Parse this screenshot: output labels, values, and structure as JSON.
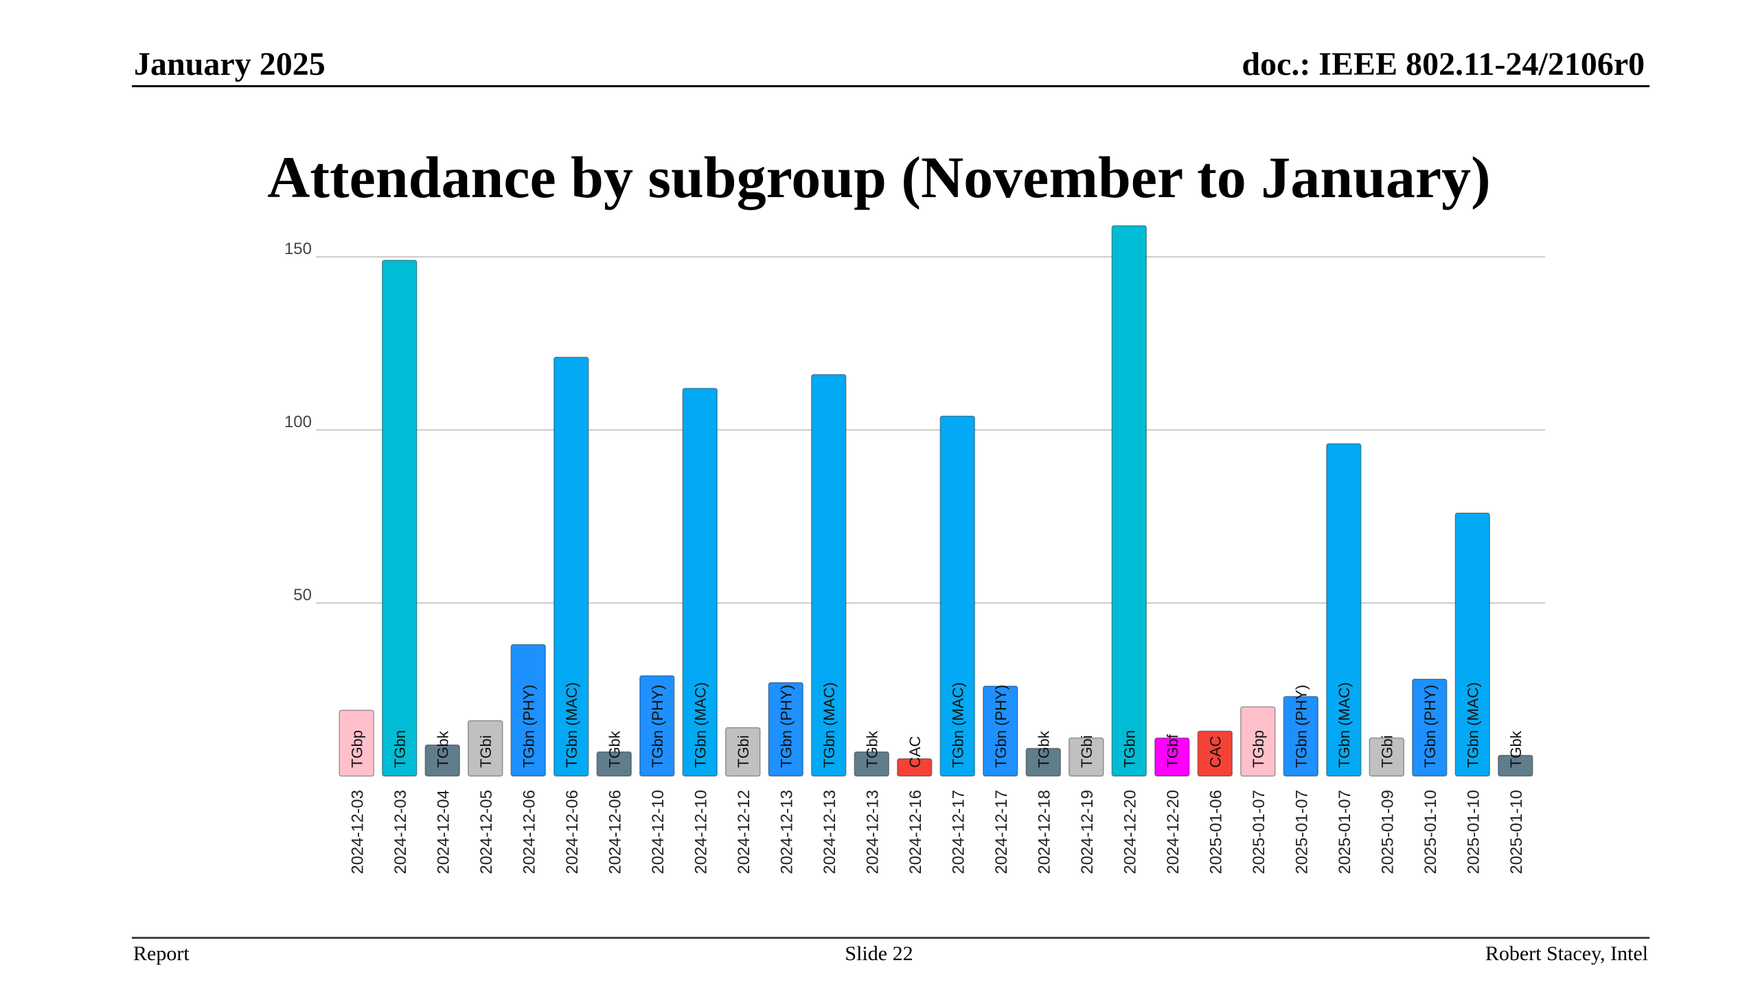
{
  "header": {
    "date": "January 2025",
    "doc": "doc.: IEEE 802.11-24/2106r0"
  },
  "title": "Attendance by subgroup (November to January)",
  "footer": {
    "left": "Report",
    "center": "Slide 22",
    "right": "Robert Stacey, Intel"
  },
  "colors": {
    "TGbp": "#ffc0cb",
    "TGbn": "#00bcd4",
    "TGbk": "#607d8b",
    "TGbi": "#c0c0c0",
    "TGbn (PHY)": "#1e90ff",
    "TGbn (MAC)": "#03a9f4",
    "CAC": "#f44336",
    "TGbf": "#ff00ff"
  },
  "chart_data": {
    "type": "bar",
    "title": "",
    "xlabel": "",
    "ylabel": "",
    "ylim": [
      0,
      160
    ],
    "yticks": [
      50,
      100,
      150
    ],
    "grid": true,
    "categories": [
      "2024-12-03",
      "2024-12-03",
      "2024-12-04",
      "2024-12-05",
      "2024-12-06",
      "2024-12-06",
      "2024-12-06",
      "2024-12-10",
      "2024-12-10",
      "2024-12-12",
      "2024-12-13",
      "2024-12-13",
      "2024-12-13",
      "2024-12-16",
      "2024-12-17",
      "2024-12-17",
      "2024-12-18",
      "2024-12-19",
      "2024-12-20",
      "2024-12-20",
      "2025-01-06",
      "2025-01-07",
      "2025-01-07",
      "2025-01-07",
      "2025-01-09",
      "2025-01-10",
      "2025-01-10",
      "2025-01-10"
    ],
    "labels": [
      "TGbp",
      "TGbn",
      "TGbk",
      "TGbi",
      "TGbn (PHY)",
      "TGbn (MAC)",
      "TGbk",
      "TGbn (PHY)",
      "TGbn (MAC)",
      "TGbi",
      "TGbn (PHY)",
      "TGbn (MAC)",
      "TGbk",
      "CAC",
      "TGbn (MAC)",
      "TGbn (PHY)",
      "TGbk",
      "TGbi",
      "TGbn",
      "TGbf",
      "CAC",
      "TGbp",
      "TGbn (PHY)",
      "TGbn (MAC)",
      "TGbi",
      "TGbn (PHY)",
      "TGbn (MAC)",
      "TGbk"
    ],
    "values": [
      19,
      149,
      9,
      16,
      38,
      121,
      7,
      29,
      112,
      14,
      27,
      116,
      7,
      5,
      104,
      26,
      8,
      11,
      159,
      11,
      13,
      20,
      23,
      96,
      11,
      28,
      76,
      6
    ]
  }
}
